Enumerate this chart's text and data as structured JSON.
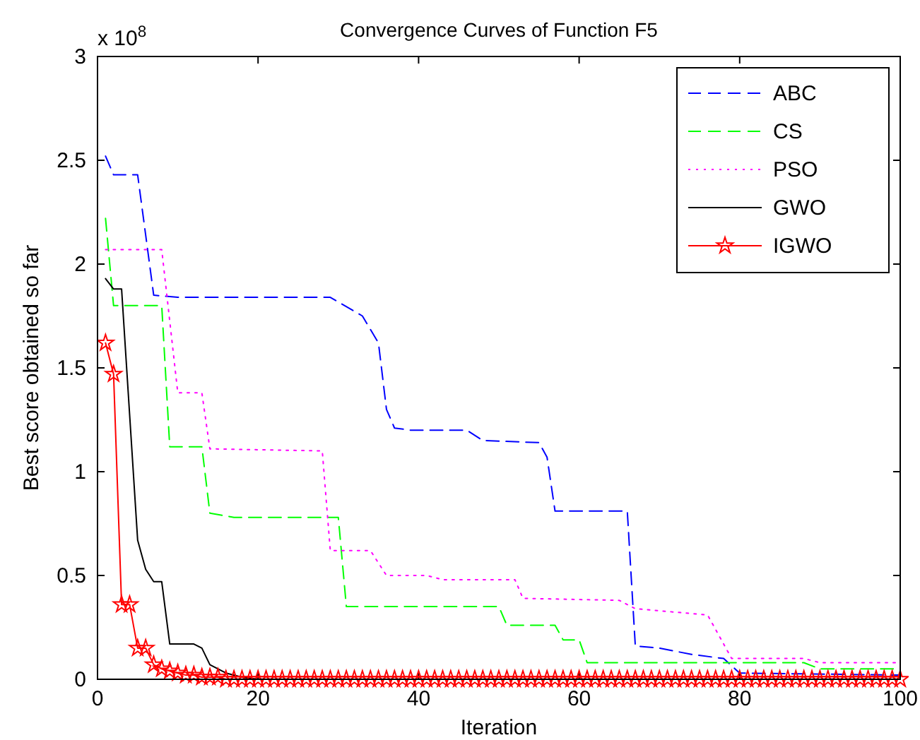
{
  "chart_data": {
    "type": "line",
    "title": "Convergence Curves of Function F5",
    "xlabel": "Iteration",
    "ylabel": "Best score obtained so far",
    "annotations": [
      "x 10$^{8}$"
    ],
    "xlim": [
      0,
      100
    ],
    "xticks": [
      0,
      20,
      40,
      60,
      80,
      100
    ],
    "ylim": [
      0,
      3
    ],
    "yticks": [
      0,
      0.5,
      1,
      1.5,
      2,
      2.5,
      3
    ],
    "grid": false,
    "legend": "top right",
    "series": [
      {
        "name": "ABC",
        "color": "#0000ff",
        "line_style": "dashed",
        "marker": "none",
        "x": [
          1,
          2,
          5,
          7,
          10,
          29,
          33,
          35,
          36,
          37,
          39,
          41,
          46,
          48,
          55,
          56,
          57,
          66,
          67,
          70,
          74,
          78,
          80,
          100
        ],
        "values": [
          2.52,
          2.43,
          2.43,
          1.85,
          1.84,
          1.84,
          1.75,
          1.62,
          1.3,
          1.21,
          1.2,
          1.2,
          1.2,
          1.15,
          1.14,
          1.07,
          0.81,
          0.81,
          0.16,
          0.15,
          0.12,
          0.1,
          0.03,
          0.02
        ]
      },
      {
        "name": "CS",
        "color": "#00ff00",
        "line_style": "dashed",
        "marker": "none",
        "x": [
          1,
          2,
          8,
          9,
          13,
          14,
          17,
          30,
          31,
          50,
          51,
          57,
          58,
          60,
          61,
          88,
          90,
          100
        ],
        "values": [
          2.22,
          1.8,
          1.8,
          1.12,
          1.12,
          0.8,
          0.78,
          0.78,
          0.35,
          0.35,
          0.26,
          0.26,
          0.19,
          0.19,
          0.08,
          0.08,
          0.05,
          0.05
        ]
      },
      {
        "name": "PSO",
        "color": "#ff00ff",
        "line_style": "dotted",
        "marker": "none",
        "x": [
          1,
          8,
          10,
          13,
          14,
          28,
          29,
          34,
          36,
          41,
          43,
          52,
          53,
          65,
          67,
          76,
          79,
          88,
          90,
          100
        ],
        "values": [
          2.07,
          2.07,
          1.38,
          1.38,
          1.11,
          1.1,
          0.62,
          0.62,
          0.5,
          0.5,
          0.48,
          0.48,
          0.39,
          0.38,
          0.34,
          0.31,
          0.1,
          0.1,
          0.08,
          0.08
        ]
      },
      {
        "name": "GWO",
        "color": "#000000",
        "line_style": "solid",
        "marker": "none",
        "x": [
          1,
          2,
          3,
          5,
          6,
          7,
          8,
          9,
          12,
          13,
          14,
          16,
          18,
          20,
          100
        ],
        "values": [
          1.93,
          1.88,
          1.88,
          0.67,
          0.53,
          0.47,
          0.47,
          0.17,
          0.17,
          0.15,
          0.07,
          0.03,
          0.01,
          0,
          0
        ]
      },
      {
        "name": "IGWO",
        "color": "#ff0000",
        "line_style": "solid",
        "marker": "star",
        "x": [
          1,
          2,
          3,
          4,
          5,
          6,
          7,
          8,
          9,
          10,
          11,
          12,
          13,
          14,
          15,
          16,
          17,
          18,
          19,
          20,
          21,
          22,
          23,
          24,
          25,
          26,
          27,
          28,
          29,
          30,
          31,
          32,
          33,
          34,
          35,
          36,
          37,
          38,
          39,
          40,
          41,
          42,
          43,
          44,
          45,
          46,
          47,
          48,
          49,
          50,
          51,
          52,
          53,
          54,
          55,
          56,
          57,
          58,
          59,
          60,
          61,
          62,
          63,
          64,
          65,
          66,
          67,
          68,
          69,
          70,
          71,
          72,
          73,
          74,
          75,
          76,
          77,
          78,
          79,
          80,
          81,
          82,
          83,
          84,
          85,
          86,
          87,
          88,
          89,
          90,
          91,
          92,
          93,
          94,
          95,
          96,
          97,
          98,
          99,
          100
        ],
        "values": [
          1.62,
          1.47,
          0.36,
          0.36,
          0.15,
          0.15,
          0.07,
          0.05,
          0.04,
          0.03,
          0.02,
          0.02,
          0.01,
          0.01,
          0.01,
          0,
          0,
          0,
          0,
          0,
          0,
          0,
          0,
          0,
          0,
          0,
          0,
          0,
          0,
          0,
          0,
          0,
          0,
          0,
          0,
          0,
          0,
          0,
          0,
          0,
          0,
          0,
          0,
          0,
          0,
          0,
          0,
          0,
          0,
          0,
          0,
          0,
          0,
          0,
          0,
          0,
          0,
          0,
          0,
          0,
          0,
          0,
          0,
          0,
          0,
          0,
          0,
          0,
          0,
          0,
          0,
          0,
          0,
          0,
          0,
          0,
          0,
          0,
          0,
          0,
          0,
          0,
          0,
          0,
          0,
          0,
          0,
          0,
          0,
          0,
          0,
          0,
          0,
          0,
          0,
          0,
          0,
          0,
          0,
          0
        ]
      }
    ]
  }
}
